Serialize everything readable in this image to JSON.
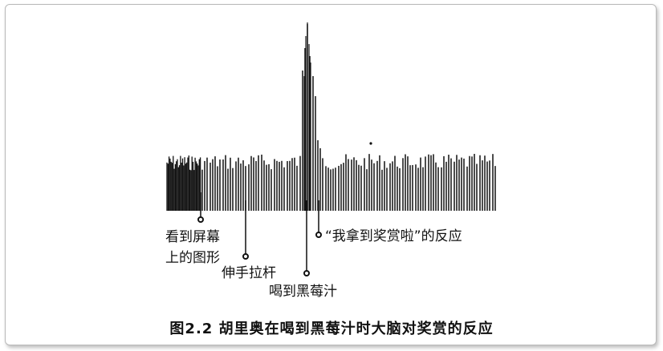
{
  "figure": {
    "caption": "图2.2   胡里奥在喝到黑莓汁时大脑对奖赏的反应"
  },
  "annotations": {
    "screen_image": [
      "看到屏幕",
      "上的图形"
    ],
    "lever": "伸手拉杆",
    "juice": "喝到黑莓汁",
    "reward": "“我拿到奖赏啦”的反应"
  },
  "colors": {
    "ink": "#111111",
    "frame": "#b9b9b9"
  }
}
